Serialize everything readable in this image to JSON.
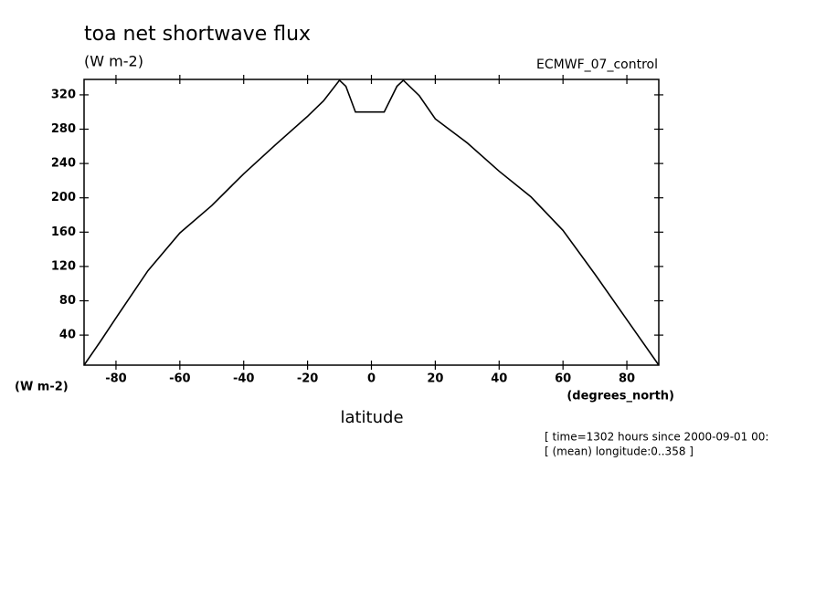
{
  "chart_data": {
    "type": "line",
    "title": "toa net shortwave flux",
    "units_label": "(W m-2)",
    "dataset_label": "ECMWF_07_control",
    "y_units_label": "(W m-2)",
    "x_units_label": "(degrees_north)",
    "xlabel": "latitude",
    "notes": [
      "[ time=1302 hours since 2000-09-01 00:",
      "[ (mean) longitude:0..358 ]"
    ],
    "x": [
      -90,
      -85,
      -80,
      -70,
      -60,
      -50,
      -40,
      -30,
      -20,
      -15,
      -10,
      -8,
      -5,
      0,
      4,
      8,
      10,
      15,
      20,
      30,
      40,
      50,
      60,
      70,
      80,
      90
    ],
    "series": [
      {
        "color": "#000000",
        "values": [
          5,
          32,
          60,
          115,
          159,
          191,
          228,
          262,
          295,
          313,
          337,
          330,
          300,
          300,
          300,
          330,
          337,
          319,
          292,
          264,
          231,
          201,
          162,
          111,
          58,
          5
        ]
      }
    ],
    "xlim": [
      -90,
      90
    ],
    "ylim": [
      5,
      338
    ],
    "xticks": [
      -80,
      -60,
      -40,
      -20,
      0,
      20,
      40,
      60,
      80
    ],
    "yticks": [
      40,
      80,
      120,
      160,
      200,
      240,
      280,
      320
    ]
  }
}
